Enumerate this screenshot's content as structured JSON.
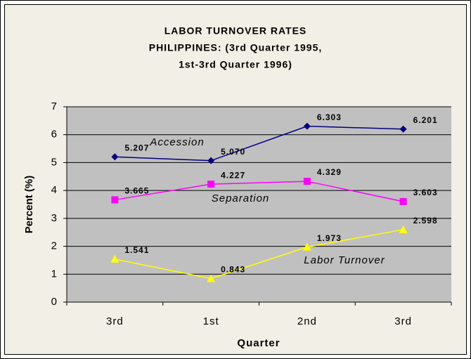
{
  "chart_data": {
    "type": "line",
    "title": [
      "LABOR TURNOVER RATES",
      "PHILIPPINES:  (3rd Quarter 1995,",
      "1st-3rd Quarter 1996)"
    ],
    "x_label": "Quarter",
    "y_label": "Percent (%)",
    "categories": [
      "3rd",
      "1st",
      "2nd",
      "3rd"
    ],
    "series": [
      {
        "name": "Accession",
        "color": "#000080",
        "marker": "diamond",
        "values": [
          5.207,
          5.07,
          6.303,
          6.201
        ],
        "value_labels": [
          "5.207",
          "5.070",
          "6.303",
          "6.201"
        ]
      },
      {
        "name": "Separation",
        "color": "#ff00ff",
        "marker": "square",
        "values": [
          3.665,
          4.227,
          4.329,
          3.603
        ],
        "value_labels": [
          "3.665",
          "4.227",
          "4.329",
          "3.603"
        ]
      },
      {
        "name": "Labor Turnover",
        "color": "#ffff00",
        "marker": "triangle",
        "values": [
          1.541,
          0.843,
          1.973,
          2.598
        ],
        "value_labels": [
          "1.541",
          "0.843",
          "1.973",
          "2.598"
        ]
      }
    ],
    "ylim": [
      0,
      7
    ],
    "yticks": [
      0,
      1,
      2,
      3,
      4,
      5,
      6,
      7
    ],
    "grid": true
  }
}
